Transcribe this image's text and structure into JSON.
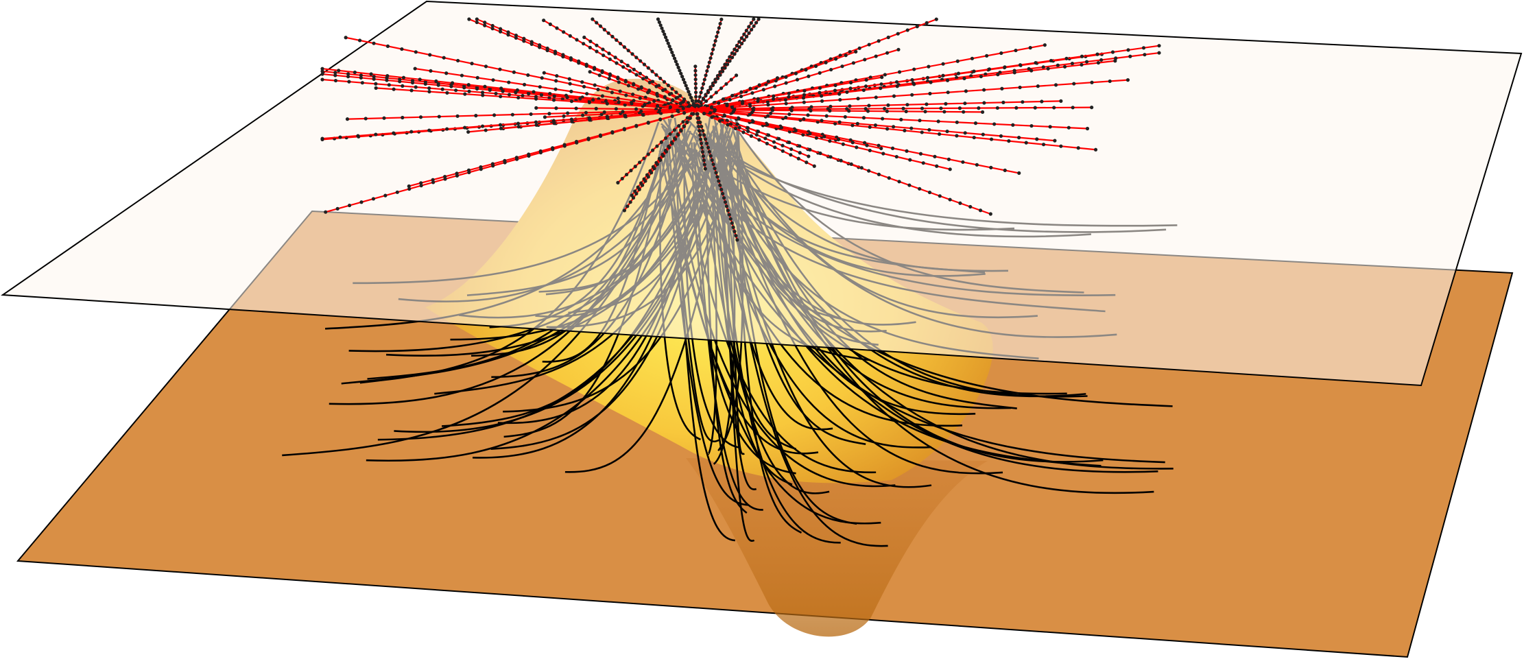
{
  "figure": {
    "colors": {
      "upper_plane_fill": "#fdf6ef",
      "lower_plane_fill": "#d98f45",
      "plane_edge": "#000000",
      "surface_bright": "#fff15a",
      "surface_mid": "#f4ad2e",
      "surface_dark": "#b86a12",
      "trajectory_black": "#000000",
      "trajectory_red": "#ff0000",
      "marker": "#222222"
    },
    "elements": [
      "upper-plane",
      "lower-plane",
      "gaussian-peak-surface",
      "gaussian-well-surface",
      "black-trajectories",
      "red-trajectories"
    ]
  }
}
